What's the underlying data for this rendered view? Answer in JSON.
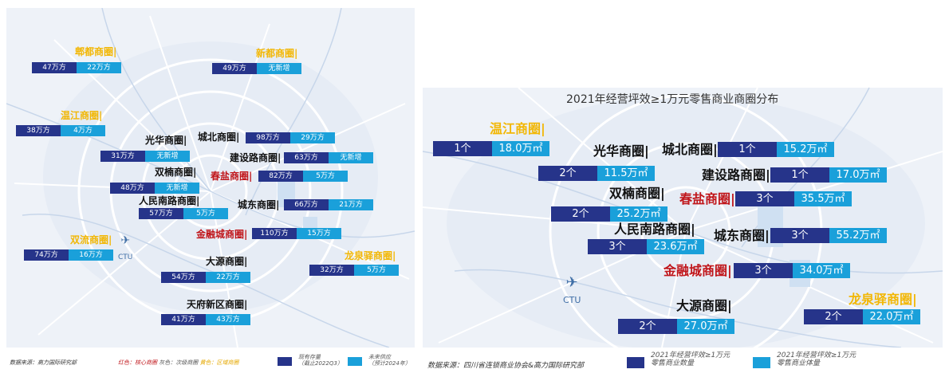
{
  "left_map": {
    "airport_code": "CTU",
    "districts": [
      {
        "name": "郫都商圈|",
        "type": "yellow",
        "existing": "47万方",
        "future": "22万方"
      },
      {
        "name": "新都商圈|",
        "type": "yellow",
        "existing": "49万方",
        "future": "无新增"
      },
      {
        "name": "温江商圈|",
        "type": "yellow",
        "existing": "38万方",
        "future": "4万方"
      },
      {
        "name": "城北商圈|",
        "type": "black",
        "existing": "98万方",
        "future": "29万方"
      },
      {
        "name": "光华商圈|",
        "type": "black",
        "existing": "31万方",
        "future": "无新增"
      },
      {
        "name": "建设路商圈|",
        "type": "black",
        "existing": "63万方",
        "future": "无新增"
      },
      {
        "name": "双楠商圈|",
        "type": "black",
        "existing": "48万方",
        "future": "无新增"
      },
      {
        "name": "春盐商圈|",
        "type": "red",
        "existing": "82万方",
        "future": "5万方"
      },
      {
        "name": "人民南路商圈|",
        "type": "black",
        "existing": "57万方",
        "future": "5万方"
      },
      {
        "name": "城东商圈|",
        "type": "black",
        "existing": "66万方",
        "future": "21万方"
      },
      {
        "name": "金融城商圈|",
        "type": "red",
        "existing": "110万方",
        "future": "15万方"
      },
      {
        "name": "双流商圈|",
        "type": "yellow",
        "existing": "74万方",
        "future": "16万方"
      },
      {
        "name": "龙泉驿商圈|",
        "type": "yellow",
        "existing": "32万方",
        "future": "5万方"
      },
      {
        "name": "大源商圈|",
        "type": "black",
        "existing": "54万方",
        "future": "22万方"
      },
      {
        "name": "天府新区商圈|",
        "type": "black",
        "existing": "41万方",
        "future": "43万方"
      }
    ],
    "footer": {
      "source": "数据来源：高力国际研究部",
      "note_red": "红色：核心商圈",
      "note_gray": "灰色：次级商圈",
      "note_yellow": "黄色：区域商圈",
      "legend_existing": "现有存量\n（截止2022Q3）",
      "legend_future": "未来供应\n（预计2024年）"
    }
  },
  "right_map": {
    "title": "2021年经营坪效≥1万元零售商业商圈分布",
    "airport_code": "CTU",
    "districts": [
      {
        "name": "温江商圈|",
        "type": "yellow",
        "count": "1个",
        "area": "18.0万㎡"
      },
      {
        "name": "光华商圈|",
        "type": "black",
        "count": "2个",
        "area": "11.5万㎡"
      },
      {
        "name": "城北商圈|",
        "type": "black",
        "count": "1个",
        "area": "15.2万㎡"
      },
      {
        "name": "建设路商圈|",
        "type": "black",
        "count": "1个",
        "area": "17.0万㎡"
      },
      {
        "name": "双楠商圈|",
        "type": "black",
        "count": "2个",
        "area": "25.2万㎡"
      },
      {
        "name": "春盐商圈|",
        "type": "red",
        "count": "3个",
        "area": "35.5万㎡"
      },
      {
        "name": "人民南路商圈|",
        "type": "black",
        "count": "3个",
        "area": "23.6万㎡"
      },
      {
        "name": "城东商圈|",
        "type": "black",
        "count": "3个",
        "area": "55.2万㎡"
      },
      {
        "name": "金融城商圈|",
        "type": "red",
        "count": "3个",
        "area": "34.0万㎡"
      },
      {
        "name": "大源商圈|",
        "type": "black",
        "count": "2个",
        "area": "27.0万㎡"
      },
      {
        "name": "龙泉驿商圈|",
        "type": "yellow",
        "count": "2个",
        "area": "22.0万㎡"
      }
    ],
    "footer": {
      "source": "数据来源：四川省连锁商业协会&高力国际研究部",
      "legend_count": "2021年经营坪效≥1万元\n零售商业数量",
      "legend_area": "2021年经营坪效≥1万元\n零售商业体量"
    }
  },
  "colors": {
    "bar_dark": "#26348a",
    "bar_light": "#1aa0da",
    "core_red": "#c0161b",
    "regional_yellow": "#f2b705",
    "secondary_black": "#111111"
  }
}
